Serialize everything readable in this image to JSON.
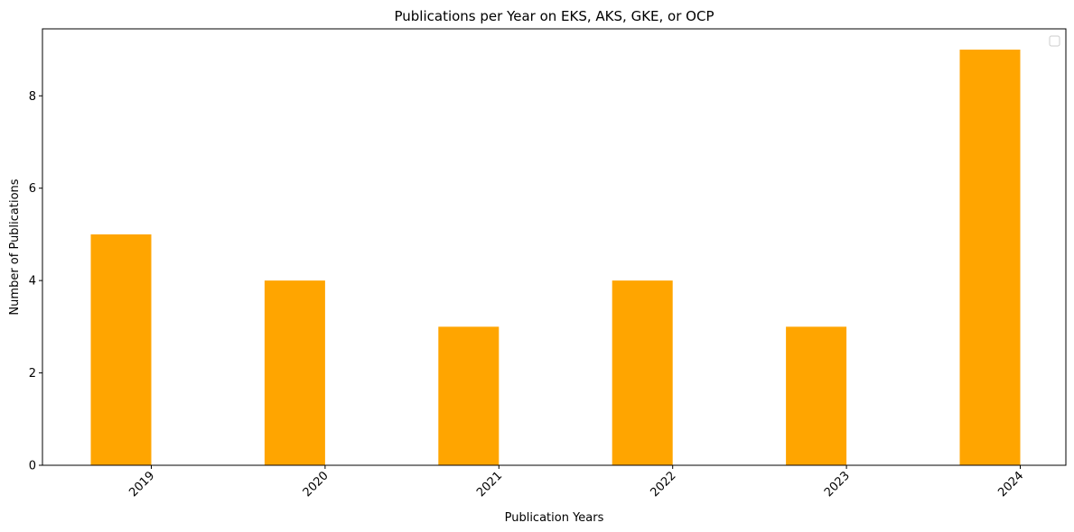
{
  "chart_data": {
    "type": "bar",
    "title": "Publications per Year on EKS, AKS, GKE, or OCP",
    "xlabel": "Publication Years",
    "ylabel": "Number of Publications",
    "categories": [
      "2019",
      "2020",
      "2021",
      "2022",
      "2023",
      "2024"
    ],
    "values": [
      5,
      4,
      3,
      4,
      3,
      9
    ],
    "ylim": [
      0,
      9.45
    ],
    "yticks": [
      0,
      2,
      4,
      6,
      8
    ],
    "bar_color": "#ffa500",
    "legend": {
      "position": "upper right",
      "entries": []
    },
    "grid": false
  }
}
